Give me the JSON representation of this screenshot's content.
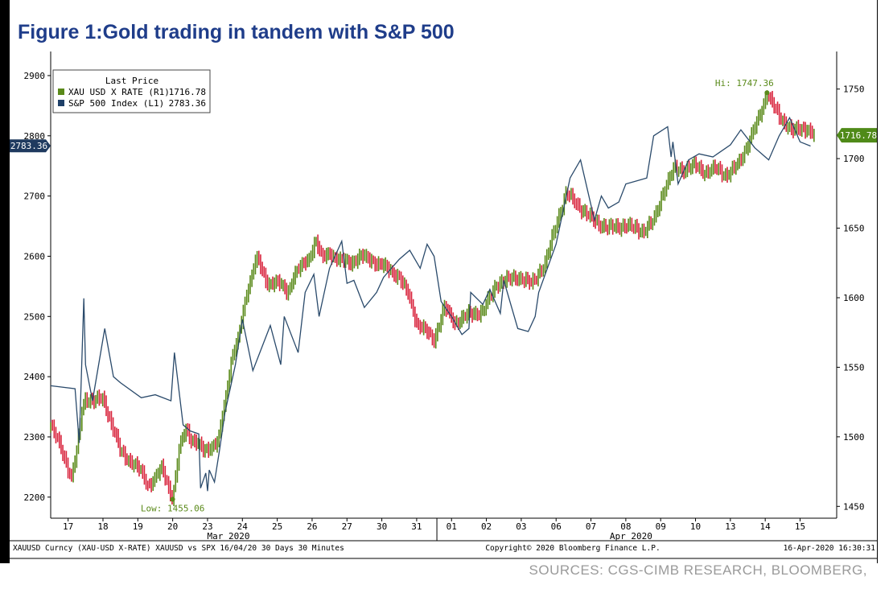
{
  "title": "Figure 1:Gold trading in tandem with S&P 500",
  "sources": "SOURCES: CGS-CIMB RESEARCH, BLOOMBERG,",
  "colors": {
    "gold": "#5a8a1a",
    "gold_down": "#d8233c",
    "spx": "#2a4a6b",
    "title": "#1f3d8a"
  },
  "chart_data": {
    "type": "line",
    "left_axis": {
      "ticks": [
        2200,
        2300,
        2400,
        2500,
        2600,
        2700,
        2800,
        2900
      ],
      "range": [
        2165,
        2940
      ]
    },
    "right_axis": {
      "ticks": [
        1450,
        1500,
        1550,
        1600,
        1650,
        1700,
        1750
      ],
      "range": [
        1441.5,
        1777
      ]
    },
    "x_ticks": [
      {
        "label": "17",
        "t": 0.5
      },
      {
        "label": "18",
        "t": 1.5
      },
      {
        "label": "19",
        "t": 2.5
      },
      {
        "label": "20",
        "t": 3.5
      },
      {
        "label": "23",
        "t": 4.5
      },
      {
        "label": "24",
        "t": 5.5
      },
      {
        "label": "25",
        "t": 6.5
      },
      {
        "label": "26",
        "t": 7.5
      },
      {
        "label": "27",
        "t": 8.5
      },
      {
        "label": "30",
        "t": 9.5
      },
      {
        "label": "31",
        "t": 10.5
      },
      {
        "label": "01",
        "t": 11.5
      },
      {
        "label": "02",
        "t": 12.5
      },
      {
        "label": "03",
        "t": 13.5
      },
      {
        "label": "06",
        "t": 14.5
      },
      {
        "label": "07",
        "t": 15.5
      },
      {
        "label": "08",
        "t": 16.5
      },
      {
        "label": "09",
        "t": 17.5
      },
      {
        "label": "10",
        "t": 18.5
      },
      {
        "label": "13",
        "t": 19.5
      },
      {
        "label": "14",
        "t": 20.5
      },
      {
        "label": "15",
        "t": 21.5
      }
    ],
    "x_range": [
      0,
      22.55
    ],
    "month_labels": [
      {
        "label": "Mar 2020",
        "t": 5.1
      },
      {
        "label": "Apr 2020",
        "t": 16.65
      }
    ],
    "month_divider_t": 11.08,
    "series": [
      {
        "name": "S&P 500 Index  (L1)",
        "axis": "left",
        "last": "2783.36",
        "x": [
          0,
          0.7,
          0.82,
          0.95,
          1.0,
          1.2,
          1.55,
          1.8,
          2.0,
          2.6,
          3.0,
          3.45,
          3.55,
          3.8,
          4.0,
          4.25,
          4.3,
          4.45,
          4.5,
          4.55,
          4.7,
          4.85,
          5.0,
          5.3,
          5.5,
          5.8,
          6.3,
          6.6,
          6.7,
          7.1,
          7.3,
          7.55,
          7.7,
          8.0,
          8.35,
          8.5,
          8.7,
          9.0,
          9.35,
          9.55,
          10.0,
          10.3,
          10.6,
          10.8,
          11.0,
          11.2,
          11.5,
          11.8,
          12.0,
          12.05,
          12.4,
          12.6,
          12.9,
          13.0,
          13.4,
          13.7,
          13.9,
          14.0,
          14.5,
          14.9,
          15.2,
          15.6,
          15.8,
          16.0,
          16.3,
          16.5,
          17.1,
          17.3,
          17.7,
          17.75,
          17.8,
          17.85,
          18.0,
          18.3,
          18.6,
          19.0,
          19.5,
          19.8,
          20.2,
          20.5,
          20.6,
          20.9,
          21.2,
          21.5,
          21.8
        ],
        "y": [
          2385,
          2380,
          2290,
          2530,
          2420,
          2360,
          2480,
          2400,
          2390,
          2365,
          2370,
          2360,
          2440,
          2320,
          2310,
          2305,
          2215,
          2240,
          2210,
          2245,
          2225,
          2280,
          2340,
          2420,
          2495,
          2410,
          2485,
          2420,
          2500,
          2440,
          2540,
          2570,
          2500,
          2580,
          2625,
          2555,
          2560,
          2515,
          2540,
          2565,
          2595,
          2610,
          2580,
          2620,
          2600,
          2525,
          2500,
          2470,
          2480,
          2540,
          2520,
          2545,
          2505,
          2560,
          2480,
          2475,
          2500,
          2540,
          2620,
          2730,
          2760,
          2660,
          2700,
          2680,
          2690,
          2720,
          2730,
          2800,
          2815,
          2790,
          2765,
          2790,
          2720,
          2760,
          2770,
          2765,
          2785,
          2810,
          2780,
          2765,
          2760,
          2800,
          2830,
          2790,
          2783
        ]
      },
      {
        "name": "XAU USD X RATE  (R1)",
        "axis": "right",
        "last": "1716.78",
        "x": [
          0,
          0.3,
          0.6,
          0.75,
          0.9,
          1.0,
          1.2,
          1.5,
          1.8,
          2.0,
          2.3,
          2.6,
          2.8,
          3.0,
          3.2,
          3.5,
          3.7,
          3.9,
          4.0,
          4.2,
          4.4,
          4.6,
          4.8,
          5.0,
          5.2,
          5.4,
          5.6,
          5.8,
          5.9,
          6.2,
          6.5,
          6.8,
          7.0,
          7.4,
          7.6,
          7.8,
          8.0,
          8.3,
          8.6,
          8.9,
          9.2,
          9.6,
          10.0,
          10.3,
          10.5,
          10.8,
          11.0,
          11.3,
          11.6,
          12.0,
          12.4,
          12.8,
          13.0,
          13.4,
          13.8,
          14.0,
          14.2,
          14.5,
          14.8,
          15.0,
          15.3,
          15.6,
          16.0,
          16.5,
          17.0,
          17.3,
          17.6,
          17.9,
          18.2,
          18.5,
          18.8,
          19.1,
          19.4,
          19.7,
          20.0,
          20.2,
          20.4,
          20.55,
          20.7,
          20.9,
          21.1,
          21.3,
          21.5,
          21.7,
          21.9
        ],
        "y": [
          1508,
          1492,
          1470,
          1490,
          1520,
          1528,
          1525,
          1528,
          1505,
          1490,
          1482,
          1475,
          1465,
          1470,
          1478,
          1455.06,
          1493,
          1507,
          1499,
          1495,
          1490,
          1493,
          1496,
          1525,
          1558,
          1572,
          1600,
          1620,
          1630,
          1610,
          1612,
          1603,
          1618,
          1627,
          1642,
          1628,
          1632,
          1627,
          1625,
          1630,
          1627,
          1622,
          1615,
          1600,
          1582,
          1575,
          1570,
          1593,
          1582,
          1588,
          1590,
          1610,
          1612,
          1615,
          1610,
          1618,
          1625,
          1653,
          1675,
          1670,
          1662,
          1655,
          1650,
          1652,
          1648,
          1655,
          1678,
          1693,
          1692,
          1695,
          1690,
          1693,
          1688,
          1695,
          1710,
          1722,
          1735,
          1747.36,
          1740,
          1730,
          1725,
          1720,
          1721,
          1722,
          1716.78
        ]
      }
    ],
    "annotations": [
      {
        "label": "Hi: 1747.36",
        "t": 20.55,
        "value": 1747.36,
        "axis": "right"
      },
      {
        "label": "Low: 1455.06",
        "t": 3.5,
        "value": 1455.06,
        "axis": "right"
      }
    ],
    "legend": {
      "title": "Last Price",
      "placement": "top-left",
      "entries": [
        {
          "name": "XAU USD X RATE  (R1)",
          "value": "1716.78",
          "color": "#5a8a1a"
        },
        {
          "name": "S&P 500 Index  (L1)",
          "value": "2783.36",
          "color": "#1f4068"
        }
      ]
    }
  },
  "footer": {
    "left": "XAUUSD Curncy (XAU-USD X-RATE) XAUUSD vs SPX 16/04/20 30 Days 30 Minutes",
    "center": "Copyright© 2020 Bloomberg Finance L.P.",
    "right": "16-Apr-2020 16:30:31"
  }
}
